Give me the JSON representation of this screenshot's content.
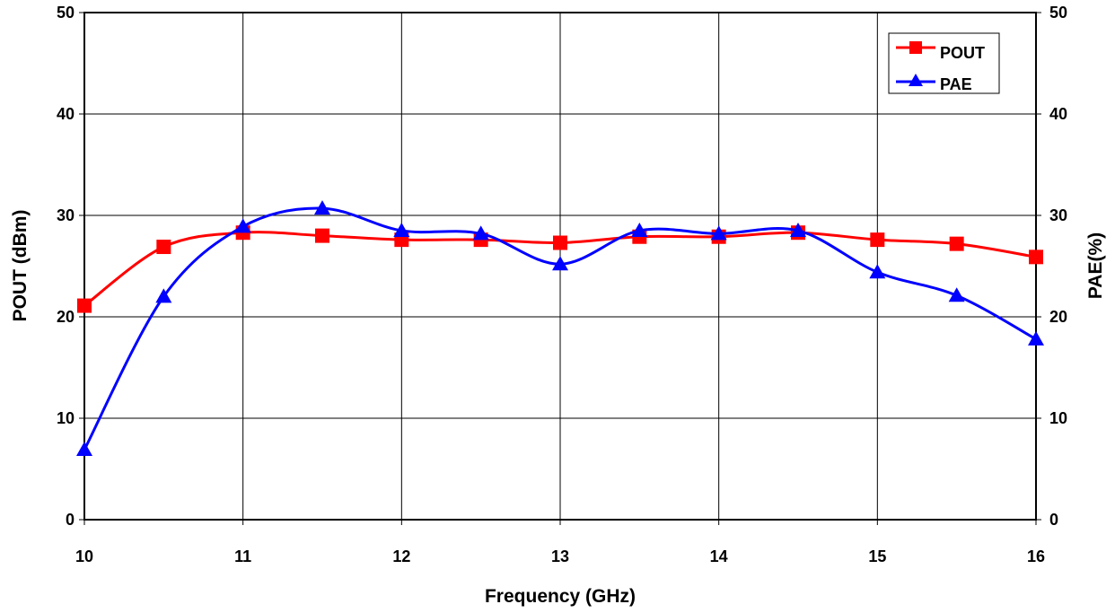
{
  "chart_data": {
    "type": "line",
    "title": "",
    "xlabel": "Frequency (GHz)",
    "ylabel": "POUT (dBm)",
    "y2label": "PAE(%)",
    "xlim": [
      10,
      16
    ],
    "ylim": [
      0,
      50
    ],
    "y2lim": [
      0,
      50
    ],
    "x_ticks": [
      "10",
      "11",
      "12",
      "13",
      "14",
      "15",
      "16"
    ],
    "y_ticks": [
      "0",
      "10",
      "20",
      "30",
      "40",
      "50"
    ],
    "y2_ticks": [
      "0",
      "10",
      "20",
      "30",
      "40",
      "50"
    ],
    "grid": true,
    "smoothed": true,
    "legend_position": "top-right",
    "x": [
      10,
      10.5,
      11,
      11.5,
      12,
      12.5,
      13,
      13.5,
      14,
      14.5,
      15,
      15.5,
      16
    ],
    "series": [
      {
        "name": "POUT",
        "axis": "left",
        "color": "#ff0000",
        "marker": "square",
        "values": [
          21.1,
          26.9,
          28.3,
          28.0,
          27.6,
          27.6,
          27.3,
          27.9,
          27.9,
          28.3,
          27.6,
          27.2,
          25.9
        ]
      },
      {
        "name": "PAE",
        "axis": "right",
        "color": "#0000ff",
        "marker": "triangle",
        "values": [
          6.9,
          22.0,
          28.9,
          30.7,
          28.5,
          28.2,
          25.2,
          28.5,
          28.2,
          28.5,
          24.4,
          22.1,
          17.8
        ]
      }
    ]
  }
}
